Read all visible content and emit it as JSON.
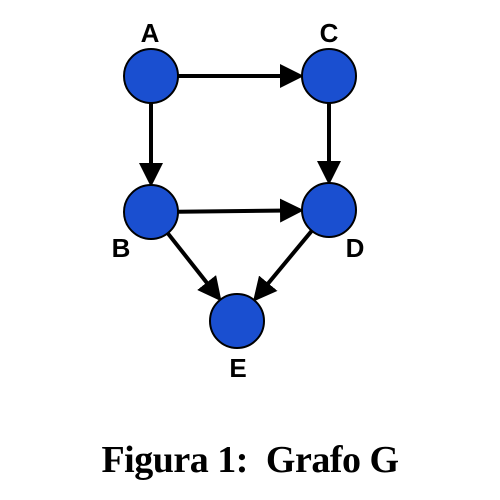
{
  "graph": {
    "node_color": "#1a4fd0",
    "edge_color": "#000000",
    "nodes": [
      {
        "id": "A",
        "label": "A"
      },
      {
        "id": "C",
        "label": "C"
      },
      {
        "id": "B",
        "label": "B"
      },
      {
        "id": "D",
        "label": "D"
      },
      {
        "id": "E",
        "label": "E"
      }
    ],
    "edges": [
      {
        "from": "A",
        "to": "C"
      },
      {
        "from": "A",
        "to": "B"
      },
      {
        "from": "C",
        "to": "D"
      },
      {
        "from": "B",
        "to": "D"
      },
      {
        "from": "B",
        "to": "E"
      },
      {
        "from": "D",
        "to": "E"
      }
    ]
  },
  "caption": "Figura 1:  Grafo G"
}
